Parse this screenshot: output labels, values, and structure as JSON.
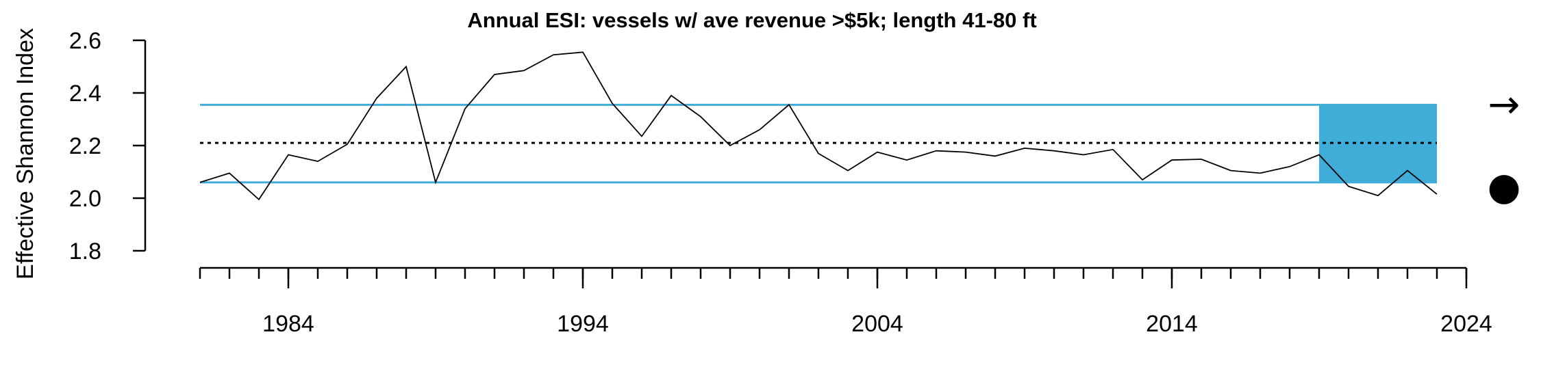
{
  "chart_data": {
    "type": "line",
    "title": "Annual ESI: vessels w/ ave revenue >$5k; length 41-80 ft",
    "xlabel": "",
    "ylabel": "Effective Shannon Index",
    "xlim": [
      1981,
      2024
    ],
    "ylim": [
      1.8,
      2.6
    ],
    "x_ticks": [
      "1984",
      "1994",
      "2004",
      "2014",
      "2024"
    ],
    "y_ticks": [
      "1.8",
      "2.0",
      "2.2",
      "2.4",
      "2.6"
    ],
    "grid": false,
    "series": [
      {
        "x": [
          1981,
          1982,
          1983,
          1984,
          1985,
          1986,
          1987,
          1988,
          1989,
          1990,
          1991,
          1992,
          1993,
          1994,
          1995,
          1996,
          1997,
          1998,
          1999,
          2000,
          2001,
          2002,
          2003,
          2004,
          2005,
          2006,
          2007,
          2008,
          2009,
          2010,
          2011,
          2012,
          2013,
          2014,
          2015,
          2016,
          2017,
          2018,
          2019,
          2020,
          2021,
          2022,
          2023
        ],
        "values": [
          2.06,
          2.095,
          1.995,
          2.165,
          2.14,
          2.205,
          2.38,
          2.5,
          2.06,
          2.34,
          2.47,
          2.485,
          2.545,
          2.555,
          2.36,
          2.235,
          2.39,
          2.31,
          2.2,
          2.26,
          2.355,
          2.17,
          2.105,
          2.175,
          2.145,
          2.18,
          2.175,
          2.16,
          2.19,
          2.18,
          2.165,
          2.185,
          2.07,
          2.145,
          2.148,
          2.105,
          2.095,
          2.12,
          2.165,
          2.045,
          2.01,
          2.105,
          2.015
        ],
        "color": "#000000"
      }
    ],
    "reference_lines": {
      "mean": 2.21,
      "upper": 2.355,
      "lower": 2.06,
      "mean_style": "dotted",
      "band_color": "#40ADD8"
    },
    "shaded_period": {
      "x_start": 2019,
      "x_end": 2023,
      "color": "#40ADD8"
    },
    "indicators": {
      "trend": "→",
      "status": "●"
    }
  }
}
